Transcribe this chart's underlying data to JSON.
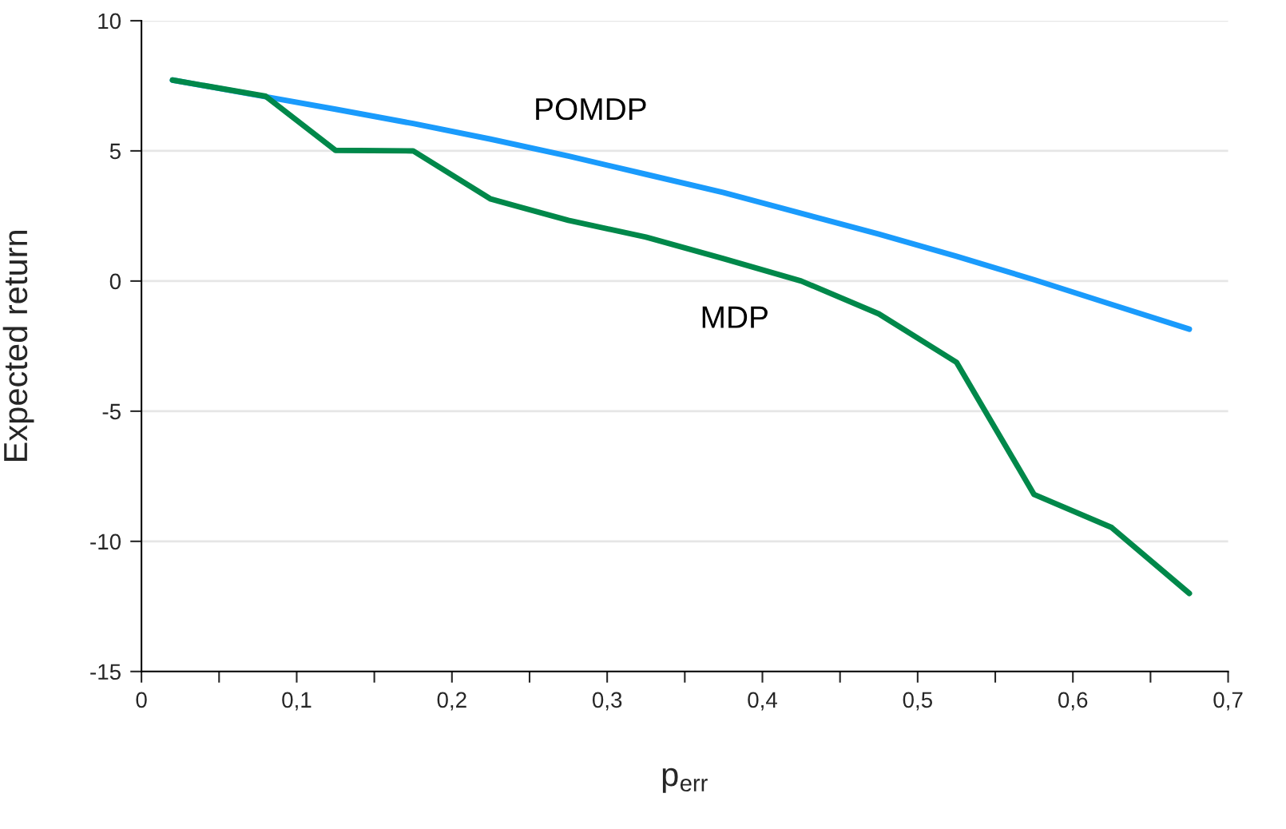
{
  "chart_data": {
    "type": "line",
    "xlabel": "p$_{err}$",
    "ylabel": "Expected return",
    "xlim": [
      0,
      0.7
    ],
    "ylim": [
      -15,
      10
    ],
    "xticks": [
      0,
      {
        "value": 0.05,
        "label": null
      },
      {
        "value": 0.1,
        "label": "0,1"
      },
      {
        "value": 0.15,
        "label": null
      },
      {
        "value": 0.2,
        "label": "0,2"
      },
      {
        "value": 0.25,
        "label": null
      },
      {
        "value": 0.3,
        "label": "0,3"
      },
      {
        "value": 0.35,
        "label": null
      },
      {
        "value": 0.4,
        "label": "0,4"
      },
      {
        "value": 0.45,
        "label": null
      },
      {
        "value": 0.5,
        "label": "0,5"
      },
      {
        "value": 0.55,
        "label": null
      },
      {
        "value": 0.6,
        "label": "0,6"
      },
      {
        "value": 0.65,
        "label": null
      },
      {
        "value": 0.7,
        "label": "0,7"
      }
    ],
    "yticks": [
      -15,
      -10,
      -5,
      0,
      5,
      10
    ],
    "grid": "y",
    "marker": "none",
    "line_style": "solid",
    "x": [
      0.02,
      0.08,
      0.125,
      0.175,
      0.225,
      0.275,
      0.325,
      0.375,
      0.425,
      0.475,
      0.525,
      0.575,
      0.625,
      0.675
    ],
    "series": [
      {
        "name": "POMDP",
        "color": "#1a9bfc",
        "values": [
          7.72,
          7.08,
          6.6,
          6.05,
          5.45,
          4.8,
          4.1,
          3.4,
          2.6,
          1.8,
          0.95,
          0.05,
          -0.9,
          -1.85
        ]
      },
      {
        "name": "MDP",
        "color": "#00884a",
        "values": [
          7.72,
          7.1,
          5.02,
          5.0,
          3.15,
          2.33,
          1.69,
          0.86,
          0.0,
          -1.26,
          -3.12,
          -8.2,
          -9.47,
          -12.0
        ]
      }
    ]
  }
}
